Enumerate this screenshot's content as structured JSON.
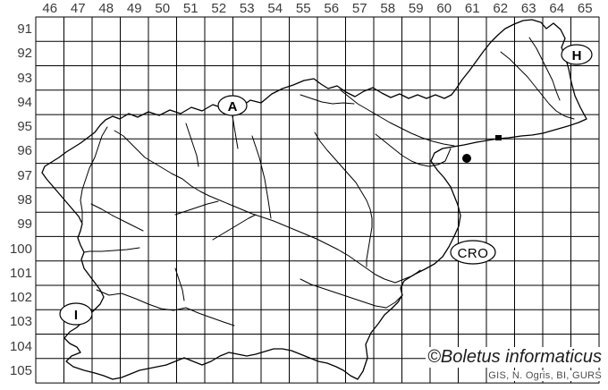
{
  "map": {
    "grid": {
      "column_labels": [
        "46",
        "47",
        "48",
        "49",
        "50",
        "51",
        "52",
        "53",
        "54",
        "55",
        "56",
        "57",
        "58",
        "59",
        "60",
        "61",
        "62",
        "63",
        "64",
        "65"
      ],
      "row_labels": [
        "91",
        "92",
        "93",
        "94",
        "95",
        "96",
        "97",
        "98",
        "99",
        "100",
        "101",
        "102",
        "103",
        "104",
        "105"
      ]
    },
    "country_labels": [
      {
        "id": "austria",
        "text": "A"
      },
      {
        "id": "hungary",
        "text": "H"
      },
      {
        "id": "croatia",
        "text": "CRO"
      },
      {
        "id": "italy",
        "text": "I"
      }
    ],
    "occurrence": {
      "count": 1,
      "grid_cell_column": "61",
      "grid_cell_row": "96"
    },
    "credits": {
      "copyright": "©Boletus informaticus",
      "attribution": "GIS, N. Ogris, BI, GURS"
    },
    "colors": {
      "line": "#000000",
      "label_text": "#3c3c3c",
      "background": "#ffffff"
    }
  }
}
